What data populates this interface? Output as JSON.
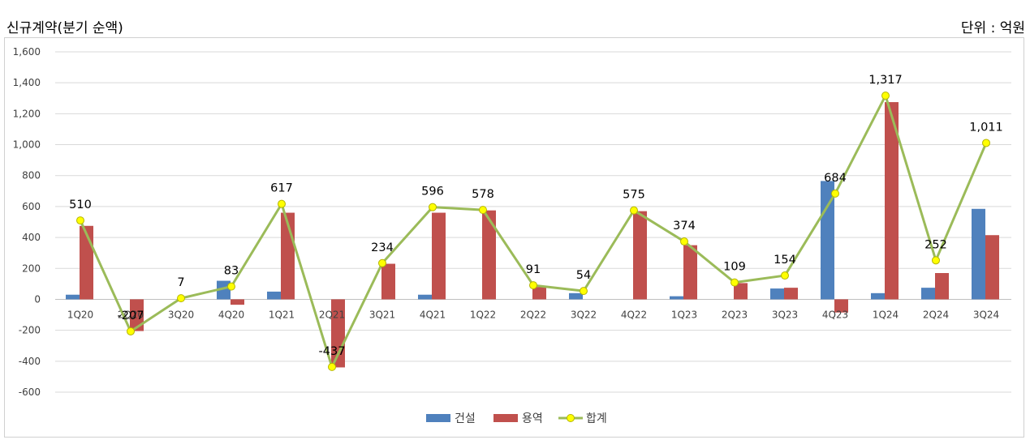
{
  "header": {
    "title": "신규계약(분기 순액)",
    "unit": "단위 : 억원"
  },
  "chart_data": {
    "type": "bar",
    "categories": [
      "1Q20",
      "2Q20",
      "3Q20",
      "4Q20",
      "1Q21",
      "2Q21",
      "3Q21",
      "4Q21",
      "1Q22",
      "2Q22",
      "3Q22",
      "4Q22",
      "1Q23",
      "2Q23",
      "3Q23",
      "4Q23",
      "1Q24",
      "2Q24",
      "3Q24"
    ],
    "series": [
      {
        "name": "건설",
        "kind": "bar",
        "color": "#4F81BD",
        "values": [
          30,
          0,
          0,
          120,
          50,
          0,
          0,
          30,
          0,
          0,
          40,
          0,
          20,
          0,
          70,
          765,
          40,
          75,
          585
        ]
      },
      {
        "name": "용역",
        "kind": "bar",
        "color": "#C0504D",
        "values": [
          475,
          -205,
          0,
          -35,
          560,
          -440,
          230,
          560,
          575,
          80,
          0,
          570,
          350,
          105,
          75,
          -85,
          1275,
          170,
          415
        ]
      },
      {
        "name": "합계",
        "kind": "line",
        "color": "#9BBB59",
        "marker_color": "#FFFF00",
        "values": [
          510,
          -207,
          7,
          83,
          617,
          -437,
          234,
          596,
          578,
          91,
          54,
          575,
          374,
          109,
          154,
          684,
          1317,
          252,
          1011
        ],
        "labels": [
          "510",
          "-207",
          "7",
          "83",
          "617",
          "-437",
          "234",
          "596",
          "578",
          "91",
          "54",
          "575",
          "374",
          "109",
          "154",
          "684",
          "1,317",
          "252",
          "1,011"
        ]
      }
    ],
    "ylim": [
      -600,
      1600
    ],
    "yticks": [
      "-600",
      "-400",
      "-200",
      "0",
      "200",
      "400",
      "600",
      "800",
      "1,000",
      "1,200",
      "1,400",
      "1,600"
    ],
    "ytick_values": [
      -600,
      -400,
      -200,
      0,
      200,
      400,
      600,
      800,
      1000,
      1200,
      1400,
      1600
    ],
    "grid": true,
    "legend": "bottom"
  }
}
